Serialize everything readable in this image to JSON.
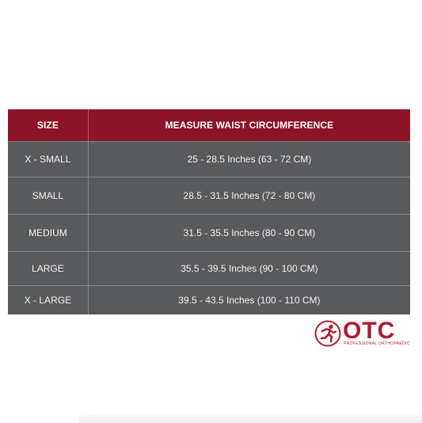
{
  "table": {
    "headers": {
      "size": "SIZE",
      "measure": "MEASURE WAIST CIRCUMFERENCE"
    },
    "rows": [
      {
        "size": "X - SMALL",
        "measure": "25 - 28.5 Inches (63 - 72 CM)"
      },
      {
        "size": "SMALL",
        "measure": "28.5 - 31.5 Inches (72 - 80 CM)"
      },
      {
        "size": "MEDIUM",
        "measure": "31.5 - 35.5 Inches (80 - 90 CM)"
      },
      {
        "size": "LARGE",
        "measure": "35.5 - 39.5 Inches (90 - 100 CM)"
      },
      {
        "size": "X - LARGE",
        "measure": "39.5 - 43.5 Inches (100 - 110 CM)"
      }
    ]
  },
  "brand": {
    "name": "OTC",
    "tagline": "PROFESSIONAL ORTHOPAEDIC",
    "icon": "runner-icon"
  },
  "colors": {
    "header_bg": "#8c1424",
    "row_bg": "#595a5c",
    "brand": "#b01a2e"
  }
}
